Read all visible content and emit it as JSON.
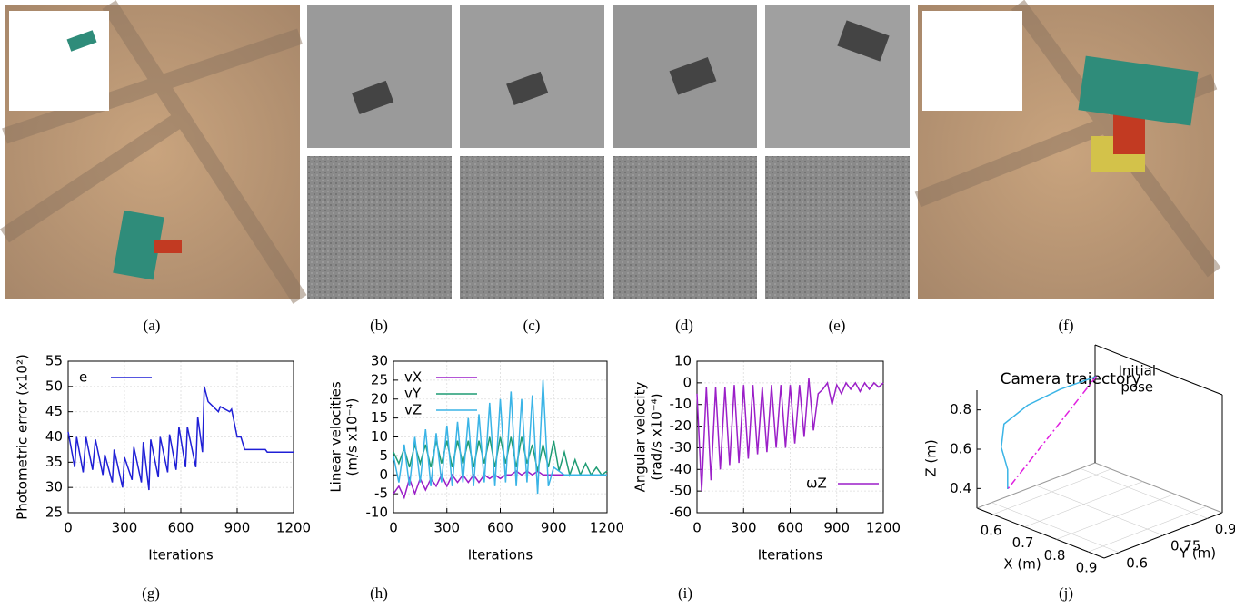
{
  "captions": [
    "(a)",
    "(b)",
    "(c)",
    "(d)",
    "(e)",
    "(f)",
    "(g)",
    "(h)",
    "(i)",
    "(j)"
  ],
  "chart_data": [
    {
      "type": "line",
      "ylabel": "Photometric error (x10²)",
      "xlabel": "Iterations",
      "xlim": [
        0,
        1200
      ],
      "xticks": [
        0,
        300,
        600,
        900,
        1200
      ],
      "ylim": [
        25,
        55
      ],
      "yticks": [
        25,
        30,
        35,
        40,
        45,
        50,
        55
      ],
      "grid": true,
      "legend": "upper left",
      "x": [
        0,
        35,
        45,
        80,
        95,
        130,
        145,
        185,
        195,
        235,
        245,
        290,
        300,
        340,
        350,
        390,
        400,
        430,
        440,
        480,
        490,
        530,
        540,
        575,
        590,
        625,
        635,
        680,
        690,
        715,
        725,
        745,
        800,
        810,
        860,
        870,
        900,
        920,
        940,
        1050,
        1060,
        1200
      ],
      "series": [
        {
          "name": "e",
          "color": "#1f1fd6",
          "values": [
            41,
            34,
            40,
            33,
            40,
            33.5,
            39.5,
            32.5,
            36.5,
            31,
            37.5,
            30,
            36,
            31.5,
            38,
            31,
            39,
            29.5,
            39.5,
            32,
            40,
            33,
            40.5,
            33.5,
            42,
            34,
            42,
            34,
            44,
            37,
            50,
            47,
            45,
            46,
            45,
            45.5,
            40,
            40,
            37.5,
            37.5,
            37,
            37
          ]
        }
      ]
    },
    {
      "type": "line",
      "ylabel": [
        "Linear velocities",
        "(m/s x10⁻⁴)"
      ],
      "xlabel": "Iterations",
      "xlim": [
        0,
        1200
      ],
      "xticks": [
        0,
        300,
        600,
        900,
        1200
      ],
      "ylim": [
        -10,
        30
      ],
      "yticks": [
        -10,
        -5,
        0,
        5,
        10,
        15,
        20,
        25,
        30
      ],
      "grid": true,
      "legend": "upper left",
      "x": [
        0,
        30,
        60,
        90,
        120,
        150,
        180,
        210,
        240,
        270,
        300,
        330,
        360,
        390,
        420,
        450,
        480,
        510,
        540,
        570,
        600,
        630,
        660,
        690,
        720,
        750,
        780,
        810,
        840,
        870,
        900,
        930,
        960,
        990,
        1020,
        1050,
        1080,
        1110,
        1140,
        1170,
        1200
      ],
      "series": [
        {
          "name": "vX",
          "color": "#9b1fc8",
          "values": [
            -5,
            -3,
            -6,
            -1,
            -5,
            -1,
            -4,
            -1,
            -3,
            0,
            -3,
            0,
            -2,
            0,
            -2,
            0,
            -2,
            0,
            -1,
            0,
            -1,
            0,
            0,
            1,
            0,
            1,
            0,
            1,
            0,
            0,
            0,
            0,
            0,
            0,
            0,
            0,
            0,
            0,
            0,
            0,
            0
          ]
        },
        {
          "name": "vY",
          "color": "#1f9c74",
          "values": [
            6,
            3,
            7,
            2,
            8,
            3,
            8,
            2,
            9,
            3,
            9,
            2,
            9,
            3,
            9,
            2,
            9,
            3,
            10,
            2,
            10,
            3,
            10,
            2,
            10,
            3,
            8,
            1,
            8,
            2,
            9,
            1,
            6,
            0,
            4,
            0,
            3,
            0,
            2,
            0,
            1
          ]
        },
        {
          "name": "vZ",
          "color": "#3ab4e6",
          "values": [
            5,
            -2,
            8,
            -3,
            10,
            -2,
            12,
            -3,
            11,
            -2,
            13,
            -3,
            14,
            -2,
            15,
            -3,
            16,
            -2,
            19,
            -3,
            20,
            -2,
            22,
            -3,
            20,
            -2,
            21,
            -5,
            25,
            -3,
            2,
            1,
            0,
            0,
            0,
            0,
            0,
            0,
            0,
            0,
            0
          ]
        }
      ]
    },
    {
      "type": "line",
      "ylabel": [
        "Angular velocity",
        "(rad/s x10⁻⁴)"
      ],
      "xlabel": "Iterations",
      "xlim": [
        0,
        1200
      ],
      "xticks": [
        0,
        300,
        600,
        900,
        1200
      ],
      "ylim": [
        -60,
        10
      ],
      "yticks": [
        -60,
        -50,
        -40,
        -30,
        -20,
        -10,
        0,
        10
      ],
      "grid": true,
      "legend": "lower right",
      "x": [
        0,
        30,
        60,
        90,
        120,
        150,
        180,
        210,
        240,
        270,
        300,
        330,
        360,
        390,
        420,
        450,
        480,
        510,
        540,
        570,
        600,
        630,
        660,
        690,
        720,
        750,
        780,
        810,
        840,
        870,
        900,
        930,
        960,
        990,
        1020,
        1050,
        1080,
        1110,
        1140,
        1170,
        1200
      ],
      "series": [
        {
          "name": "ωZ",
          "color": "#9b1fc8",
          "values": [
            -5,
            -50,
            -2,
            -45,
            -2,
            -40,
            -2,
            -38,
            -1,
            -37,
            -1,
            -35,
            -1,
            -33,
            -2,
            -32,
            -1,
            -30,
            -1,
            -30,
            -1,
            -28,
            -1,
            -25,
            2,
            -22,
            -5,
            -3,
            0,
            -10,
            -1,
            -5,
            0,
            -3,
            0,
            -4,
            0,
            -3,
            0,
            -2,
            0
          ]
        }
      ]
    },
    {
      "type": "line3d",
      "title": "Camera trajectory",
      "xlabel": "X (m)",
      "ylabel": "Y (m)",
      "zlabel": "Z (m)",
      "xlim": [
        0.55,
        0.95
      ],
      "xticks": [
        0.6,
        0.7,
        0.8,
        0.9
      ],
      "ylim": [
        0.55,
        0.95
      ],
      "yticks": [
        0.6,
        0.75,
        0.9
      ],
      "zlim": [
        0.3,
        0.9
      ],
      "zticks": [
        0.4,
        0.6,
        0.8
      ],
      "annotation": [
        "Initial",
        "pose"
      ],
      "series": [
        {
          "color": "#3ab4e6",
          "x": [
            0.6,
            0.58,
            0.57,
            0.57,
            0.58,
            0.6,
            0.6
          ],
          "y": [
            0.9,
            0.8,
            0.7,
            0.62,
            0.6,
            0.6,
            0.6
          ],
          "z": [
            0.8,
            0.78,
            0.75,
            0.7,
            0.6,
            0.5,
            0.4
          ]
        },
        {
          "color": "#e020e0",
          "dashed": true,
          "x": [
            0.6,
            0.6
          ],
          "y": [
            0.9,
            0.6
          ],
          "z": [
            0.8,
            0.4
          ]
        }
      ]
    }
  ]
}
